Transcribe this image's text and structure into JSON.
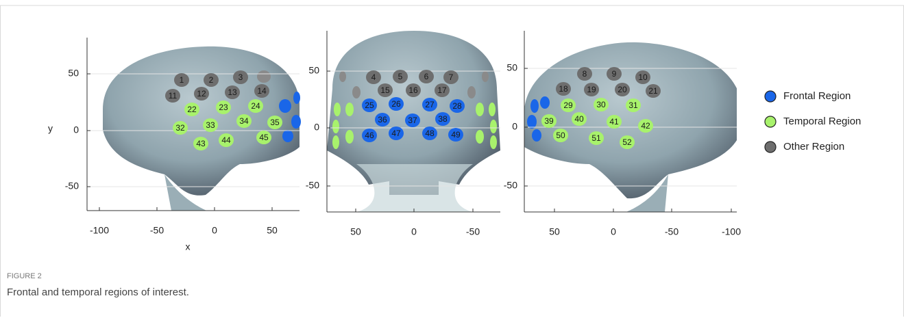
{
  "figure": {
    "caption_label": "FIGURE 2",
    "caption": "Frontal and temporal regions of interest.",
    "legend": [
      {
        "label": "Frontal Region",
        "color": "#1a66e8"
      },
      {
        "label": "Temporal Region",
        "color": "#a8f26c"
      },
      {
        "label": "Other Region",
        "color": "#6e6e6e"
      }
    ],
    "panels": [
      {
        "ylabel": "y",
        "xlabel": "x",
        "yticks": [
          "50",
          "0",
          "-50"
        ],
        "xticks": [
          "-100",
          "-50",
          "0",
          "50"
        ],
        "channels": [
          {
            "label": "1",
            "color": "#6e6e6e"
          },
          {
            "label": "2",
            "color": "#6e6e6e"
          },
          {
            "label": "3",
            "color": "#6e6e6e"
          },
          {
            "label": "11",
            "color": "#6e6e6e"
          },
          {
            "label": "12",
            "color": "#6e6e6e"
          },
          {
            "label": "13",
            "color": "#6e6e6e"
          },
          {
            "label": "14",
            "color": "#6e6e6e"
          },
          {
            "label": "22",
            "color": "#a8f26c"
          },
          {
            "label": "23",
            "color": "#a8f26c"
          },
          {
            "label": "24",
            "color": "#a8f26c"
          },
          {
            "label": "32",
            "color": "#a8f26c"
          },
          {
            "label": "33",
            "color": "#a8f26c"
          },
          {
            "label": "34",
            "color": "#a8f26c"
          },
          {
            "label": "35",
            "color": "#a8f26c"
          },
          {
            "label": "43",
            "color": "#a8f26c"
          },
          {
            "label": "44",
            "color": "#a8f26c"
          },
          {
            "label": "45",
            "color": "#a8f26c"
          }
        ]
      },
      {
        "yticks": [
          "50",
          "0",
          "-50"
        ],
        "xticks": [
          "50",
          "0",
          "-50"
        ],
        "channels": [
          {
            "label": "4",
            "color": "#6e6e6e"
          },
          {
            "label": "5",
            "color": "#6e6e6e"
          },
          {
            "label": "6",
            "color": "#6e6e6e"
          },
          {
            "label": "7",
            "color": "#6e6e6e"
          },
          {
            "label": "15",
            "color": "#6e6e6e"
          },
          {
            "label": "16",
            "color": "#6e6e6e"
          },
          {
            "label": "17",
            "color": "#6e6e6e"
          },
          {
            "label": "25",
            "color": "#1a66e8"
          },
          {
            "label": "26",
            "color": "#1a66e8"
          },
          {
            "label": "27",
            "color": "#1a66e8"
          },
          {
            "label": "28",
            "color": "#1a66e8"
          },
          {
            "label": "36",
            "color": "#1a66e8"
          },
          {
            "label": "37",
            "color": "#1a66e8"
          },
          {
            "label": "38",
            "color": "#1a66e8"
          },
          {
            "label": "46",
            "color": "#1a66e8"
          },
          {
            "label": "47",
            "color": "#1a66e8"
          },
          {
            "label": "48",
            "color": "#1a66e8"
          },
          {
            "label": "49",
            "color": "#1a66e8"
          }
        ]
      },
      {
        "yticks": [
          "50",
          "0",
          "-50"
        ],
        "xticks": [
          "50",
          "0",
          "-50",
          "-100"
        ],
        "channels": [
          {
            "label": "8",
            "color": "#6e6e6e"
          },
          {
            "label": "9",
            "color": "#6e6e6e"
          },
          {
            "label": "10",
            "color": "#6e6e6e"
          },
          {
            "label": "18",
            "color": "#6e6e6e"
          },
          {
            "label": "19",
            "color": "#6e6e6e"
          },
          {
            "label": "20",
            "color": "#6e6e6e"
          },
          {
            "label": "21",
            "color": "#6e6e6e"
          },
          {
            "label": "29",
            "color": "#a8f26c"
          },
          {
            "label": "30",
            "color": "#a8f26c"
          },
          {
            "label": "31",
            "color": "#a8f26c"
          },
          {
            "label": "39",
            "color": "#a8f26c"
          },
          {
            "label": "40",
            "color": "#a8f26c"
          },
          {
            "label": "41",
            "color": "#a8f26c"
          },
          {
            "label": "42",
            "color": "#a8f26c"
          },
          {
            "label": "50",
            "color": "#a8f26c"
          },
          {
            "label": "51",
            "color": "#a8f26c"
          },
          {
            "label": "52",
            "color": "#a8f26c"
          }
        ]
      }
    ]
  }
}
